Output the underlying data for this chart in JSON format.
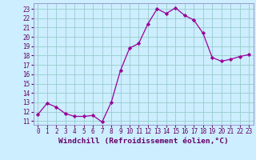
{
  "x": [
    0,
    1,
    2,
    3,
    4,
    5,
    6,
    7,
    8,
    9,
    10,
    11,
    12,
    13,
    14,
    15,
    16,
    17,
    18,
    19,
    20,
    21,
    22,
    23
  ],
  "y": [
    11.7,
    12.9,
    12.5,
    11.8,
    11.5,
    11.5,
    11.6,
    10.9,
    13.0,
    16.4,
    18.8,
    19.3,
    21.4,
    23.0,
    22.5,
    23.1,
    22.3,
    21.8,
    20.4,
    17.8,
    17.4,
    17.6,
    17.9,
    18.1
  ],
  "line_color": "#990099",
  "marker": "D",
  "marker_size": 2.2,
  "bg_color": "#cceeff",
  "grid_color": "#99cccc",
  "xlabel": "Windchill (Refroidissement éolien,°C)",
  "xlabel_color": "#660066",
  "ylabel_ticks": [
    11,
    12,
    13,
    14,
    15,
    16,
    17,
    18,
    19,
    20,
    21,
    22,
    23
  ],
  "xlim": [
    -0.5,
    23.5
  ],
  "ylim": [
    10.6,
    23.6
  ],
  "tick_fontsize": 5.5,
  "xlabel_fontsize": 6.8,
  "border_color": "#9999cc",
  "spine_color": "#9999cc"
}
